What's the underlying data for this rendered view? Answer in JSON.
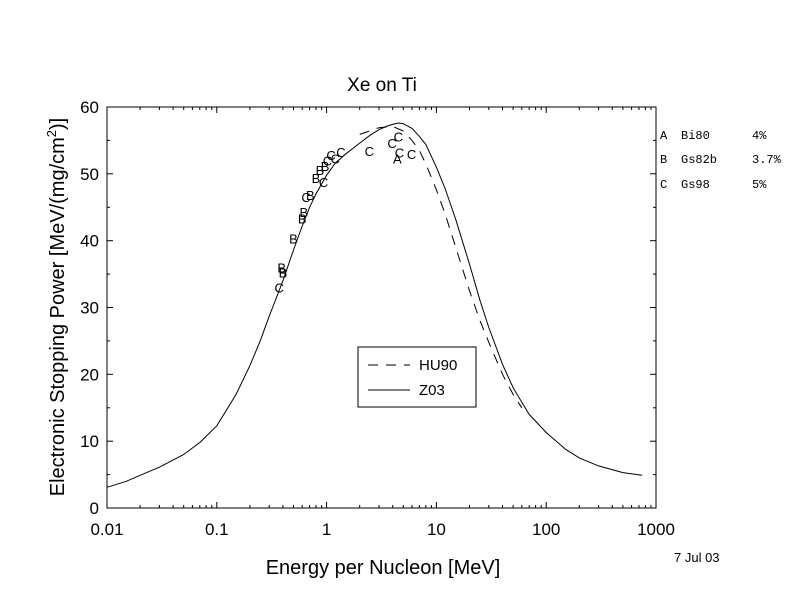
{
  "chart_data": {
    "type": "line",
    "title": "Xe on Ti",
    "xlabel": "Energy per Nucleon [MeV]",
    "ylabel": "Electronic Stopping Power [MeV/(mg/cm",
    "ylabel_superscript": "2",
    "ylabel_suffix": ")]",
    "xscale": "log",
    "xlim": [
      0.01,
      1000
    ],
    "ylim": [
      0,
      60
    ],
    "x_ticks": [
      {
        "value": 0.01,
        "label": "0.01"
      },
      {
        "value": 0.1,
        "label": "0.1"
      },
      {
        "value": 1,
        "label": "1"
      },
      {
        "value": 10,
        "label": "10"
      },
      {
        "value": 100,
        "label": "100"
      },
      {
        "value": 1000,
        "label": "1000"
      }
    ],
    "y_ticks": [
      {
        "value": 0,
        "label": "0"
      },
      {
        "value": 10,
        "label": "10"
      },
      {
        "value": 20,
        "label": "20"
      },
      {
        "value": 30,
        "label": "30"
      },
      {
        "value": 40,
        "label": "40"
      },
      {
        "value": 50,
        "label": "50"
      },
      {
        "value": 60,
        "label": "60"
      }
    ],
    "grid": false,
    "legend_position": "lower-middle",
    "series": [
      {
        "name": "HU90",
        "style": "dashed",
        "x": [
          2,
          3,
          4,
          5,
          6,
          7,
          8,
          10,
          12,
          15,
          20,
          25,
          30,
          40,
          50,
          60
        ],
        "y": [
          55.9,
          56.9,
          57.1,
          56.4,
          55.0,
          53.5,
          51.5,
          47.6,
          44.0,
          39.0,
          32.5,
          28.0,
          24.8,
          20.0,
          17.0,
          15.0
        ]
      },
      {
        "name": "Z03",
        "style": "solid",
        "x": [
          0.01,
          0.015,
          0.02,
          0.03,
          0.05,
          0.07,
          0.1,
          0.15,
          0.2,
          0.25,
          0.3,
          0.35,
          0.4,
          0.5,
          0.6,
          0.7,
          0.8,
          1,
          1.2,
          1.5,
          2,
          2.5,
          3,
          3.5,
          4,
          4.5,
          5,
          6,
          7,
          8,
          10,
          12,
          15,
          20,
          25,
          30,
          40,
          50,
          70,
          100,
          150,
          200,
          300,
          500,
          750
        ],
        "y": [
          3.1,
          4.0,
          4.9,
          6.1,
          8.0,
          9.8,
          12.3,
          17.0,
          21.3,
          25.1,
          28.7,
          31.5,
          34.0,
          38.6,
          42.2,
          45.0,
          47.0,
          49.8,
          51.6,
          53.0,
          54.6,
          55.8,
          56.6,
          57.1,
          57.4,
          57.6,
          57.5,
          56.8,
          55.6,
          54.4,
          51.0,
          47.8,
          43.2,
          36.5,
          31.0,
          27.0,
          21.5,
          18.0,
          14.0,
          11.3,
          8.8,
          7.5,
          6.3,
          5.3,
          4.9
        ]
      }
    ],
    "markers": [
      {
        "label": "C",
        "x": 0.37,
        "y": 33.0
      },
      {
        "label": "B",
        "x": 0.39,
        "y": 36.0
      },
      {
        "label": "B",
        "x": 0.4,
        "y": 35.2
      },
      {
        "label": "B",
        "x": 0.5,
        "y": 40.3
      },
      {
        "label": "B",
        "x": 0.6,
        "y": 43.3
      },
      {
        "label": "B",
        "x": 0.62,
        "y": 44.3
      },
      {
        "label": "C",
        "x": 0.65,
        "y": 46.5
      },
      {
        "label": "B",
        "x": 0.71,
        "y": 46.8
      },
      {
        "label": "B",
        "x": 0.8,
        "y": 49.4
      },
      {
        "label": "B",
        "x": 0.87,
        "y": 50.6
      },
      {
        "label": "C",
        "x": 0.94,
        "y": 48.8
      },
      {
        "label": "B",
        "x": 0.97,
        "y": 51.2
      },
      {
        "label": "C",
        "x": 1.02,
        "y": 52.0
      },
      {
        "label": "C",
        "x": 1.1,
        "y": 52.8
      },
      {
        "label": "C",
        "x": 1.2,
        "y": 52.3
      },
      {
        "label": "C",
        "x": 1.35,
        "y": 53.3
      },
      {
        "label": "C",
        "x": 2.45,
        "y": 53.4
      },
      {
        "label": "C",
        "x": 3.95,
        "y": 54.6
      },
      {
        "label": "C",
        "x": 4.5,
        "y": 55.6
      },
      {
        "label": "A",
        "x": 4.4,
        "y": 52.3
      },
      {
        "label": "C",
        "x": 4.6,
        "y": 53.2
      },
      {
        "label": "C",
        "x": 5.95,
        "y": 53.0
      }
    ],
    "reference_legend": [
      {
        "key": "A",
        "name": "Bi80",
        "error": "4%"
      },
      {
        "key": "B",
        "name": "Gs82b",
        "error": "3.7%"
      },
      {
        "key": "C",
        "name": "Gs98",
        "error": "5%"
      }
    ],
    "annotation_date": "7 Jul 03"
  }
}
